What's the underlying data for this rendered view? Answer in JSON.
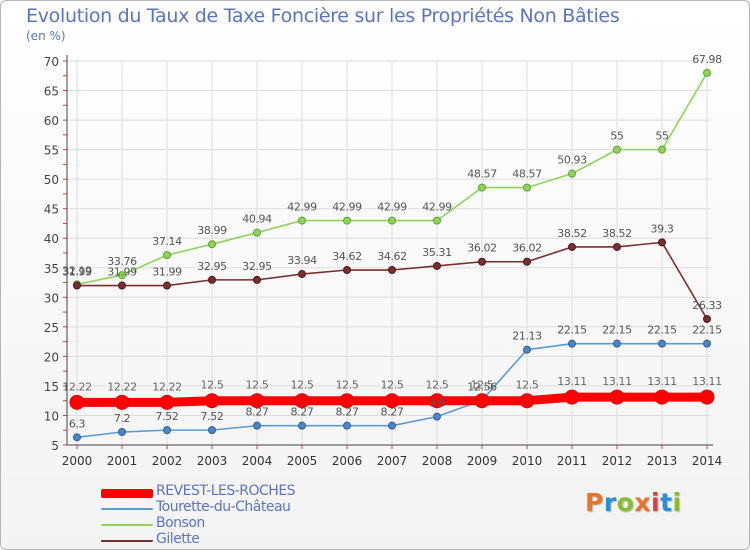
{
  "title": "Evolution du Taux de Taxe Foncière sur les Propriétés Non Bâties",
  "unit_label": "(en %)",
  "logo": {
    "text": "Proxiti",
    "colors": [
      "#e8732a",
      "#2c8fd3",
      "#89bd2c",
      "#e8732a",
      "#d94141",
      "#2c8fd3",
      "#89bd2c"
    ]
  },
  "chart_data": {
    "type": "line",
    "title": "Evolution du Taux de Taxe Foncière sur les Propriétés Non Bâties",
    "ylabel": "(en %)",
    "xlabel": "",
    "x": [
      2000,
      2001,
      2002,
      2003,
      2004,
      2005,
      2006,
      2007,
      2008,
      2009,
      2010,
      2011,
      2012,
      2013,
      2014
    ],
    "ylim": [
      5,
      70
    ],
    "yticks": [
      5,
      10,
      15,
      20,
      25,
      30,
      35,
      40,
      45,
      50,
      55,
      60,
      65,
      70
    ],
    "grid": true,
    "legend_position": "bottom-left",
    "series": [
      {
        "name": "REVEST-LES-ROCHES",
        "color": "#ff0000",
        "values": [
          12.22,
          12.22,
          12.22,
          12.5,
          12.5,
          12.5,
          12.5,
          12.5,
          12.5,
          12.5,
          12.5,
          13.11,
          13.11,
          13.11,
          13.11
        ],
        "labels": [
          "12.22",
          "12.22",
          "12.22",
          "12.5",
          "12.5",
          "12.5",
          "12.5",
          "12.5",
          "12.5",
          "12.5",
          "12.5",
          "13.11",
          "13.11",
          "13.11",
          "13.11"
        ]
      },
      {
        "name": "Tourette-du-Château",
        "color": "#5b9bd5",
        "values": [
          6.3,
          7.2,
          7.52,
          7.52,
          8.27,
          8.27,
          8.27,
          8.27,
          9.8,
          12.56,
          21.13,
          22.15,
          22.15,
          22.15,
          22.15
        ],
        "labels": [
          "6.3",
          "7.2",
          "7.52",
          "7.52",
          "8.27",
          "8.27",
          "8.27",
          "8.27",
          "9.8",
          "12.56",
          "21.13",
          "22.15",
          "22.15",
          "22.15",
          "22.15"
        ]
      },
      {
        "name": "Bonson",
        "color": "#8fd45a",
        "values": [
          32.19,
          33.76,
          37.14,
          38.99,
          40.94,
          42.99,
          42.99,
          42.99,
          42.99,
          48.57,
          48.57,
          50.93,
          55,
          55,
          67.98
        ],
        "labels": [
          "32.19",
          "33.76",
          "37.14",
          "38.99",
          "40.94",
          "42.99",
          "42.99",
          "42.99",
          "42.99",
          "48.57",
          "48.57",
          "50.93",
          "55",
          "55",
          "67.98"
        ]
      },
      {
        "name": "Gilette",
        "color": "#7b2e2e",
        "values": [
          31.99,
          31.99,
          31.99,
          32.95,
          32.95,
          33.94,
          34.62,
          34.62,
          35.31,
          36.02,
          36.02,
          38.52,
          38.52,
          39.3,
          26.33
        ],
        "labels": [
          "31.99",
          "31.99",
          "31.99",
          "32.95",
          "32.95",
          "33.94",
          "34.62",
          "34.62",
          "35.31",
          "36.02",
          "36.02",
          "38.52",
          "38.52",
          "39.3",
          "26.33"
        ]
      }
    ]
  }
}
